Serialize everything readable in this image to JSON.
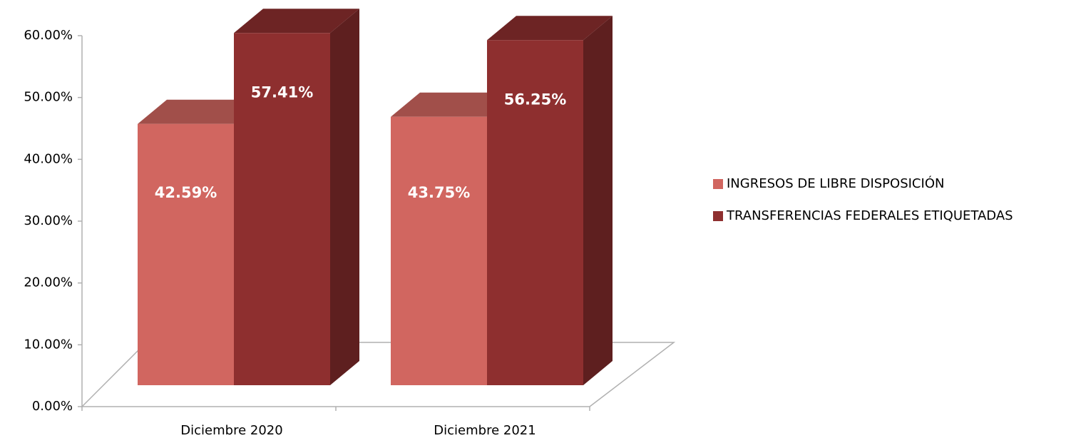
{
  "chart_data": {
    "type": "bar3d",
    "categories": [
      "Diciembre 2020",
      "Diciembre 2021"
    ],
    "series": [
      {
        "name": "INGRESOS DE LIBRE DISPOSICIÓN",
        "color": "#d16660",
        "values": [
          42.59,
          43.75
        ],
        "value_labels": [
          "42.59%",
          "43.75%"
        ]
      },
      {
        "name": "TRANSFERENCIAS FEDERALES ETIQUETADAS",
        "color": "#8e2f2f",
        "values": [
          57.41,
          56.25
        ],
        "value_labels": [
          "57.41%",
          "56.25%"
        ]
      }
    ],
    "ylim": [
      0,
      60
    ],
    "yticks": [
      {
        "value": 0,
        "label": "0.00%"
      },
      {
        "value": 10,
        "label": "10.00%"
      },
      {
        "value": 20,
        "label": "20.00%"
      },
      {
        "value": 30,
        "label": "30.00%"
      },
      {
        "value": 40,
        "label": "40.00%"
      },
      {
        "value": 50,
        "label": "50.00%"
      },
      {
        "value": 60,
        "label": "60.00%"
      }
    ],
    "legend": "right"
  }
}
